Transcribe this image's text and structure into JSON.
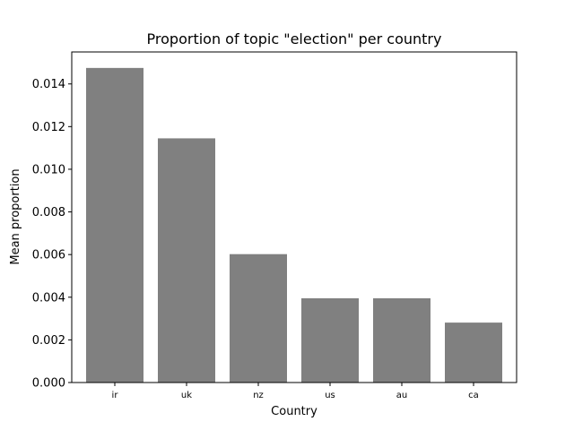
{
  "chart_data": {
    "type": "bar",
    "title": "Proportion of topic \"election\" per country",
    "xlabel": "Country",
    "ylabel": "Mean proportion",
    "categories": [
      "ir",
      "uk",
      "nz",
      "us",
      "au",
      "ca"
    ],
    "values": [
      0.01475,
      0.01145,
      0.00602,
      0.00395,
      0.00395,
      0.00281
    ],
    "ylim": [
      0,
      0.0155
    ],
    "yticks": [
      "0.000",
      "0.002",
      "0.004",
      "0.006",
      "0.008",
      "0.010",
      "0.012",
      "0.014"
    ],
    "bar_color": "#808080",
    "grid": false,
    "legend": "none"
  }
}
